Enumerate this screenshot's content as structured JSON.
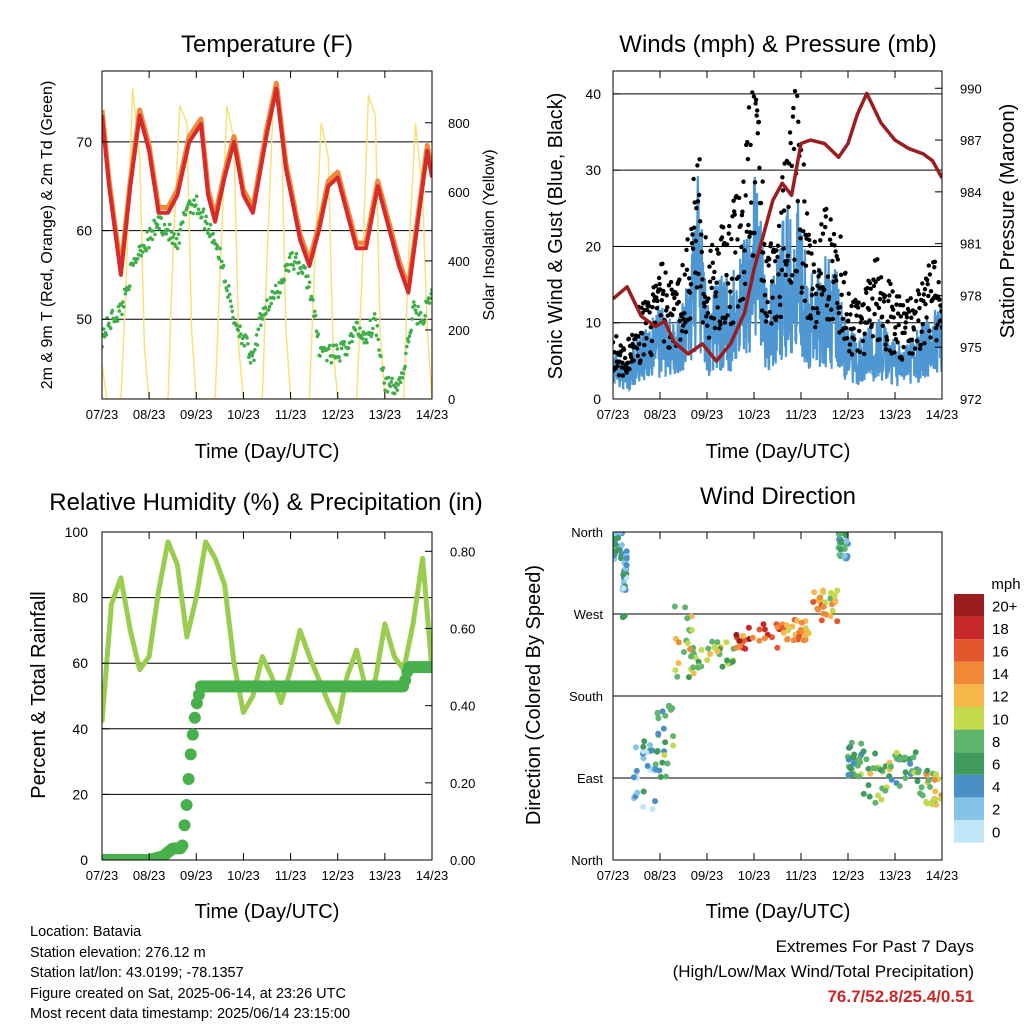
{
  "time_ticks": [
    "07/23",
    "08/23",
    "09/23",
    "10/23",
    "11/23",
    "12/23",
    "13/23",
    "14/23"
  ],
  "xlabel": "Time (Day/UTC)",
  "panels": {
    "temperature": {
      "title": "Temperature (F)",
      "ylabel_left": "2m & 9m T (Red, Orange) & 2m Td (Green)",
      "ylabel_right": "Solar Insolation (Yellow)",
      "yticks_left": [
        "50",
        "60",
        "70"
      ],
      "yticks_right": [
        "0",
        "200",
        "400",
        "600",
        "800"
      ]
    },
    "winds": {
      "title": "Winds (mph) & Pressure (mb)",
      "ylabel_left": "Sonic Wind & Gust (Blue, Black)",
      "ylabel_right": "Station Pressure (Maroon)",
      "yticks_left": [
        "0",
        "10",
        "20",
        "30",
        "40"
      ],
      "yticks_right": [
        "972",
        "975",
        "978",
        "981",
        "984",
        "987",
        "990"
      ]
    },
    "humidity": {
      "title": "Relative Humidity (%) & Precipitation (in)",
      "ylabel_left": "Percent & Total Rainfall",
      "yticks_left": [
        "0",
        "20",
        "40",
        "60",
        "80",
        "100"
      ],
      "yticks_right": [
        "0.00",
        "0.20",
        "0.40",
        "0.60",
        "0.80"
      ]
    },
    "direction": {
      "title": "Wind Direction",
      "ylabel_left": "Direction (Colored By Speed)",
      "yticks_left": [
        "North",
        "East",
        "South",
        "West",
        "North"
      ],
      "colorbar_title": "mph",
      "colorbar_labels": [
        "0",
        "2",
        "4",
        "6",
        "8",
        "10",
        "12",
        "14",
        "16",
        "18",
        "20+"
      ],
      "colorbar_colors": [
        "#bfe6f7",
        "#86c3e8",
        "#4a90c6",
        "#3f9a5c",
        "#5fb56c",
        "#c5d94c",
        "#f7b84b",
        "#f08a3a",
        "#e4572e",
        "#c8282a",
        "#9a1d20"
      ]
    }
  },
  "info": {
    "location": "Location: Batavia",
    "elevation": "Station elevation: 276.12 m",
    "latlon": "Station lat/lon: 43.0199; -78.1357",
    "created": "Figure created on Sat, 2025-06-14, at 23:26 UTC",
    "recent": "Most recent data timestamp: 2025/06/14 23:15:00"
  },
  "extremes": {
    "line1": "Extremes For Past 7 Days",
    "line2": "(High/Low/Max Wind/Total Precipitation)",
    "values": "76.7/52.8/25.4/0.51"
  },
  "colors": {
    "temp_2m": "#d52b2b",
    "temp_9m": "#f08a3a",
    "dewpoint": "#3fae49",
    "solar": "#f7e17a",
    "wind": "#4f97d3",
    "gust": "#000000",
    "pressure": "#9b1d20",
    "rh": "#9acd4f",
    "precip": "#47b04b"
  },
  "chart_data": [
    {
      "type": "line",
      "title": "Temperature (F)",
      "xlabel": "Time (Day/UTC)",
      "ylabel": "2m & 9m T (Red, Orange) & 2m Td (Green)",
      "ylabel_right": "Solar Insolation (Yellow)",
      "x_unit": "days since 07/23 UTC",
      "ylim": [
        41,
        78
      ],
      "ylim_right": [
        0,
        950
      ],
      "series": [
        {
          "name": "2m T",
          "axis": "left",
          "x": [
            0,
            0.15,
            0.4,
            0.6,
            0.8,
            1.0,
            1.2,
            1.4,
            1.6,
            1.85,
            2.1,
            2.25,
            2.4,
            2.6,
            2.8,
            3.0,
            3.2,
            3.5,
            3.7,
            3.9,
            4.2,
            4.4,
            4.6,
            4.8,
            5.0,
            5.2,
            5.4,
            5.6,
            5.85,
            6.1,
            6.3,
            6.5,
            6.7,
            6.9,
            7.0
          ],
          "y": [
            73,
            65,
            55,
            65,
            73,
            69,
            62,
            62,
            64,
            70,
            72,
            64,
            61,
            66,
            70,
            64,
            62,
            71,
            76,
            67,
            59,
            56,
            60,
            65,
            66,
            62,
            58,
            58,
            65,
            60,
            56,
            53,
            61,
            69,
            66
          ]
        },
        {
          "name": "2m Td",
          "axis": "left",
          "x": [
            0,
            0.2,
            0.4,
            0.6,
            0.8,
            1.0,
            1.2,
            1.4,
            1.6,
            1.8,
            2.0,
            2.2,
            2.4,
            2.6,
            2.8,
            3.0,
            3.2,
            3.4,
            3.6,
            3.8,
            4.0,
            4.2,
            4.4,
            4.6,
            4.8,
            5.0,
            5.2,
            5.4,
            5.6,
            5.8,
            6.0,
            6.2,
            6.4,
            6.6,
            6.8,
            7.0
          ],
          "y": [
            48,
            50,
            51,
            55,
            58,
            59,
            61,
            60,
            58,
            63,
            63,
            61,
            59,
            55,
            50,
            48,
            45,
            51,
            52,
            54,
            57,
            56,
            54,
            47,
            46,
            46,
            47,
            49,
            48,
            50,
            43,
            42,
            44,
            51,
            50,
            53
          ]
        },
        {
          "name": "Solar Insolation",
          "axis": "right",
          "x": [
            0,
            0.1,
            0.25,
            0.4,
            0.5,
            0.65,
            0.8,
            0.9,
            1.0,
            1.25,
            1.4,
            1.5,
            1.65,
            1.8,
            1.9,
            2.0,
            2.25,
            2.4,
            2.5,
            2.65,
            2.8,
            2.9,
            3.0,
            3.25,
            3.4,
            3.5,
            3.65,
            3.8,
            3.9,
            4.0,
            4.25,
            4.4,
            4.5,
            4.65,
            4.8,
            4.9,
            5.0,
            5.25,
            5.4,
            5.5,
            5.65,
            5.8,
            5.9,
            6.0,
            6.25,
            6.4,
            6.5,
            6.65,
            6.8,
            6.9,
            7.0
          ],
          "y": [
            100,
            0,
            0,
            0,
            300,
            900,
            700,
            150,
            0,
            0,
            0,
            400,
            850,
            800,
            200,
            0,
            0,
            0,
            350,
            850,
            750,
            150,
            0,
            0,
            0,
            400,
            920,
            850,
            200,
            0,
            0,
            0,
            350,
            800,
            700,
            150,
            0,
            0,
            0,
            300,
            880,
            820,
            200,
            0,
            0,
            0,
            400,
            800,
            600,
            200,
            0
          ]
        }
      ]
    },
    {
      "type": "line",
      "title": "Winds (mph) & Pressure (mb)",
      "xlabel": "Time (Day/UTC)",
      "ylabel": "Sonic Wind & Gust (Blue, Black)",
      "ylabel_right": "Station Pressure (Maroon)",
      "x_unit": "days since 07/23 UTC",
      "ylim": [
        0,
        43
      ],
      "ylim_right": [
        972,
        991
      ],
      "series": [
        {
          "name": "Sonic Wind",
          "axis": "left",
          "x": [
            0,
            0.3,
            0.5,
            0.8,
            1.0,
            1.3,
            1.6,
            1.8,
            2.0,
            2.3,
            2.5,
            2.8,
            3.0,
            3.3,
            3.6,
            3.9,
            4.2,
            4.5,
            4.8,
            5.0,
            5.3,
            5.6,
            5.9,
            6.2,
            6.5,
            6.8,
            7.0
          ],
          "y": [
            4,
            3,
            5,
            6,
            8,
            6,
            10,
            18,
            8,
            10,
            10,
            14,
            20,
            8,
            14,
            18,
            10,
            12,
            10,
            6,
            5,
            7,
            5,
            4,
            6,
            7,
            8
          ]
        },
        {
          "name": "Gust",
          "axis": "left",
          "x": [
            0,
            0.3,
            0.5,
            0.8,
            1.0,
            1.3,
            1.6,
            1.8,
            2.0,
            2.3,
            2.5,
            2.8,
            3.0,
            3.3,
            3.6,
            3.9,
            4.2,
            4.5,
            4.8,
            5.0,
            5.3,
            5.6,
            5.9,
            6.2,
            6.5,
            6.8,
            7.0
          ],
          "y": [
            6,
            5,
            8,
            10,
            13,
            10,
            15,
            25,
            13,
            16,
            17,
            22,
            32,
            13,
            20,
            30,
            14,
            18,
            16,
            10,
            9,
            13,
            11,
            9,
            11,
            13,
            12
          ]
        },
        {
          "name": "Station Pressure",
          "axis": "right",
          "x": [
            0,
            0.3,
            0.6,
            0.9,
            1.1,
            1.3,
            1.6,
            1.9,
            2.2,
            2.5,
            2.8,
            3.0,
            3.2,
            3.4,
            3.6,
            3.8,
            4.0,
            4.2,
            4.5,
            4.8,
            5.0,
            5.2,
            5.4,
            5.7,
            6.0,
            6.3,
            6.6,
            6.8,
            7.0
          ],
          "y": [
            977.8,
            978.5,
            976.8,
            976.2,
            976.5,
            975.3,
            974.6,
            975.2,
            974.2,
            975.2,
            977.0,
            979.5,
            981.5,
            983.5,
            984.5,
            983.8,
            986.8,
            987.0,
            986.8,
            986.0,
            986.8,
            988.5,
            989.7,
            988.0,
            987.0,
            986.5,
            986.2,
            985.8,
            984.8
          ]
        }
      ]
    },
    {
      "type": "line",
      "title": "Relative Humidity (%) & Precipitation (in)",
      "xlabel": "Time (Day/UTC)",
      "ylabel": "Percent & Total Rainfall",
      "x_unit": "days since 07/23 UTC",
      "ylim": [
        0,
        100
      ],
      "ylim_right": [
        0,
        0.85
      ],
      "series": [
        {
          "name": "Relative Humidity",
          "axis": "left",
          "x": [
            0,
            0.2,
            0.4,
            0.6,
            0.8,
            1.0,
            1.2,
            1.4,
            1.6,
            1.8,
            2.0,
            2.2,
            2.4,
            2.6,
            2.8,
            3.0,
            3.2,
            3.4,
            3.6,
            3.8,
            4.0,
            4.2,
            4.4,
            4.6,
            4.8,
            5.0,
            5.2,
            5.4,
            5.6,
            5.8,
            6.0,
            6.2,
            6.4,
            6.6,
            6.8,
            7.0
          ],
          "y": [
            42,
            78,
            86,
            70,
            58,
            62,
            82,
            97,
            90,
            68,
            80,
            97,
            92,
            84,
            60,
            45,
            50,
            62,
            56,
            48,
            58,
            70,
            62,
            55,
            48,
            42,
            56,
            64,
            52,
            55,
            72,
            62,
            58,
            72,
            92,
            58
          ]
        },
        {
          "name": "Total Precipitation",
          "axis": "right",
          "x": [
            0,
            0.5,
            1.0,
            1.3,
            1.5,
            1.7,
            1.8,
            1.85,
            1.9,
            2.0,
            2.1,
            2.3,
            3.0,
            4.0,
            5.0,
            6.0,
            6.4,
            6.5,
            6.7,
            7.0
          ],
          "y": [
            0,
            0,
            0,
            0.01,
            0.03,
            0.03,
            0.15,
            0.23,
            0.3,
            0.4,
            0.45,
            0.45,
            0.45,
            0.45,
            0.45,
            0.45,
            0.45,
            0.5,
            0.5,
            0.5
          ]
        }
      ]
    },
    {
      "type": "scatter",
      "title": "Wind Direction",
      "xlabel": "Time (Day/UTC)",
      "ylabel": "Direction (Colored By Speed)",
      "x_unit": "days since 07/23 UTC",
      "y_unit": "degrees (0 = North, 90 = East, 180 = South, 270 = West, 360 = North)",
      "ylim": [
        0,
        360
      ],
      "color_scale": "mph 0–20+",
      "clusters": [
        {
          "x": [
            0,
            0.2
          ],
          "y": [
            330,
            360
          ],
          "speed": 4
        },
        {
          "x": [
            0.2,
            0.3
          ],
          "y": [
            260,
            340
          ],
          "speed": 3
        },
        {
          "x": [
            0.4,
            0.9
          ],
          "y": [
            50,
            140
          ],
          "speed": 3
        },
        {
          "x": [
            0.9,
            1.3
          ],
          "y": [
            90,
            170
          ],
          "speed": 6
        },
        {
          "x": [
            1.3,
            1.8
          ],
          "y": [
            200,
            280
          ],
          "speed": 10
        },
        {
          "x": [
            1.8,
            2.6
          ],
          "y": [
            210,
            240
          ],
          "speed": 9
        },
        {
          "x": [
            2.6,
            3.6
          ],
          "y": [
            230,
            260
          ],
          "speed": 16
        },
        {
          "x": [
            3.6,
            4.2
          ],
          "y": [
            240,
            265
          ],
          "speed": 13
        },
        {
          "x": [
            4.2,
            4.8
          ],
          "y": [
            260,
            300
          ],
          "speed": 12
        },
        {
          "x": [
            4.8,
            5.0
          ],
          "y": [
            330,
            360
          ],
          "speed": 5
        },
        {
          "x": [
            5.0,
            5.3
          ],
          "y": [
            90,
            130
          ],
          "speed": 7
        },
        {
          "x": [
            5.3,
            5.9
          ],
          "y": [
            60,
            120
          ],
          "speed": 9
        },
        {
          "x": [
            5.9,
            6.5
          ],
          "y": [
            80,
            120
          ],
          "speed": 6
        },
        {
          "x": [
            6.5,
            7.0
          ],
          "y": [
            60,
            100
          ],
          "speed": 10
        }
      ]
    }
  ]
}
